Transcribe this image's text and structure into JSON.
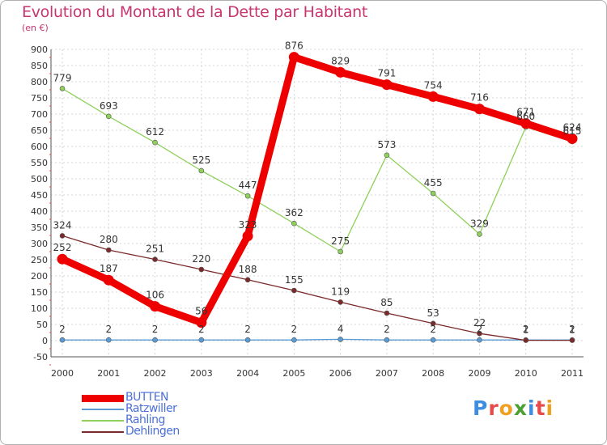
{
  "title": "Evolution du Montant de la Dette par Habitant",
  "subtitle": "(en €)",
  "brand": {
    "text": "Proxiti",
    "letters": [
      "P",
      "r",
      "o",
      "x",
      "i",
      "t",
      "i"
    ],
    "colors": [
      "#3d8ee0",
      "#e84a4a",
      "#f0a020",
      "#4aa030",
      "#3d8ee0",
      "#e84a4a",
      "#f0a020"
    ]
  },
  "chart_data": {
    "type": "line",
    "title": "Evolution du Montant de la Dette par Habitant",
    "subtitle": "(en €)",
    "xlabel": "",
    "ylabel": "",
    "x": [
      "2000",
      "2001",
      "2002",
      "2003",
      "2004",
      "2005",
      "2006",
      "2007",
      "2008",
      "2009",
      "2010",
      "2011"
    ],
    "ylim": [
      -50,
      900
    ],
    "yticks": [
      -50,
      0,
      50,
      100,
      150,
      200,
      250,
      300,
      350,
      400,
      450,
      500,
      550,
      600,
      650,
      700,
      750,
      800,
      850,
      900
    ],
    "grid": true,
    "legend_position": "bottom-left",
    "series": [
      {
        "name": "BUTTEN",
        "color": "#ee0000",
        "emphasis": "bold",
        "values": [
          252,
          187,
          106,
          56,
          323,
          876,
          829,
          791,
          754,
          716,
          671,
          624
        ]
      },
      {
        "name": "Ratzwiller",
        "color": "#5b9bd5",
        "emphasis": "thin",
        "values": [
          2,
          2,
          2,
          2,
          2,
          2,
          4,
          2,
          2,
          2,
          2,
          2
        ]
      },
      {
        "name": "Rahling",
        "color": "#8ed05a",
        "emphasis": "thin",
        "values": [
          779,
          693,
          612,
          525,
          447,
          362,
          275,
          573,
          455,
          329,
          660,
          615
        ]
      },
      {
        "name": "Dehlingen",
        "color": "#7a2a2a",
        "emphasis": "thin",
        "values": [
          324,
          280,
          251,
          220,
          188,
          155,
          119,
          85,
          53,
          22,
          1,
          1
        ]
      }
    ]
  }
}
